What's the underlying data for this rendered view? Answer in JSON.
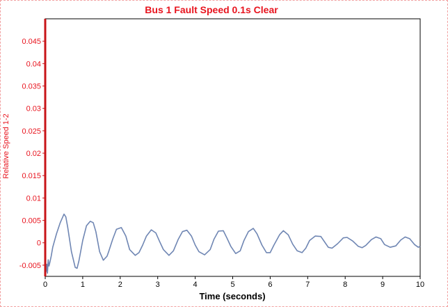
{
  "chart_data": {
    "type": "line",
    "title": "Bus 1 Fault Speed 0.1s Clear",
    "xlabel": "Time (seconds)",
    "ylabel": "Relative Speed 1-2",
    "xlim": [
      0,
      10
    ],
    "ylim": [
      -0.0075,
      0.05
    ],
    "x_ticks": [
      0,
      1,
      2,
      3,
      4,
      5,
      6,
      7,
      8,
      9,
      10
    ],
    "y_ticks": [
      -0.005,
      0,
      0.005,
      0.01,
      0.015,
      0.02,
      0.025,
      0.03,
      0.035,
      0.04,
      0.045
    ],
    "y_tick_labels": [
      "-0.005",
      "0",
      "0.005",
      "0.01",
      "0.015",
      "0.02",
      "0.025",
      "0.03",
      "0.035",
      "0.04",
      "0.045"
    ],
    "grid": false,
    "colors": {
      "title": "#e8141e",
      "line": "#6f86b3",
      "y_axis": "#c81418",
      "frame": "#000000"
    },
    "series": [
      {
        "x": [
          0,
          0.02,
          0.04,
          0.06,
          0.08,
          0.1,
          0.12,
          0.16,
          0.2,
          0.3,
          0.4,
          0.5,
          0.55,
          0.6,
          0.7,
          0.8,
          0.85,
          0.9,
          1.0,
          1.1,
          1.2,
          1.28,
          1.35,
          1.45,
          1.55,
          1.65,
          1.7,
          1.8,
          1.9,
          2.03,
          2.15,
          2.25,
          2.4,
          2.5,
          2.6,
          2.7,
          2.83,
          2.95,
          3.05,
          3.15,
          3.3,
          3.42,
          3.55,
          3.66,
          3.78,
          3.9,
          4.0,
          4.1,
          4.25,
          4.4,
          4.5,
          4.62,
          4.75,
          4.85,
          4.95,
          5.08,
          5.2,
          5.3,
          5.42,
          5.55,
          5.65,
          5.78,
          5.9,
          6.0,
          6.1,
          6.25,
          6.35,
          6.48,
          6.6,
          6.72,
          6.85,
          6.95,
          7.05,
          7.2,
          7.35,
          7.45,
          7.55,
          7.65,
          7.8,
          7.95,
          8.05,
          8.2,
          8.35,
          8.45,
          8.55,
          8.7,
          8.82,
          8.95,
          9.05,
          9.2,
          9.35,
          9.48,
          9.6,
          9.72,
          9.85,
          9.95,
          10.0
        ],
        "y": [
          -0.0035,
          -0.0065,
          -0.0048,
          -0.0068,
          -0.0038,
          -0.0052,
          -0.0045,
          -0.003,
          -0.001,
          0.002,
          0.0045,
          0.0064,
          0.0058,
          0.0035,
          -0.002,
          -0.0055,
          -0.0057,
          -0.004,
          0.0005,
          0.0038,
          0.0048,
          0.0045,
          0.0025,
          -0.002,
          -0.0039,
          -0.003,
          -0.0018,
          0.0008,
          0.003,
          0.0034,
          0.0015,
          -0.0015,
          -0.0028,
          -0.0022,
          -0.0005,
          0.0015,
          0.0029,
          0.0022,
          0.0003,
          -0.0015,
          -0.0028,
          -0.0018,
          0.0008,
          0.0025,
          0.0028,
          0.0015,
          -0.0005,
          -0.002,
          -0.0027,
          -0.0015,
          0.0008,
          0.0026,
          0.0027,
          0.001,
          -0.0008,
          -0.0024,
          -0.0018,
          0.0005,
          0.0025,
          0.0032,
          0.002,
          -0.0005,
          -0.0022,
          -0.0022,
          -0.0005,
          0.0018,
          0.0027,
          0.0018,
          -0.0003,
          -0.0018,
          -0.0022,
          -0.0012,
          0.0005,
          0.0015,
          0.0014,
          0.0002,
          -0.001,
          -0.0012,
          -0.0002,
          0.0011,
          0.0012,
          0.0004,
          -0.0008,
          -0.0011,
          -0.0006,
          0.0007,
          0.0013,
          0.0009,
          -0.0004,
          -0.001,
          -0.0007,
          0.0006,
          0.0013,
          0.0009,
          -0.0004,
          -0.001,
          -0.0008
        ]
      }
    ]
  }
}
